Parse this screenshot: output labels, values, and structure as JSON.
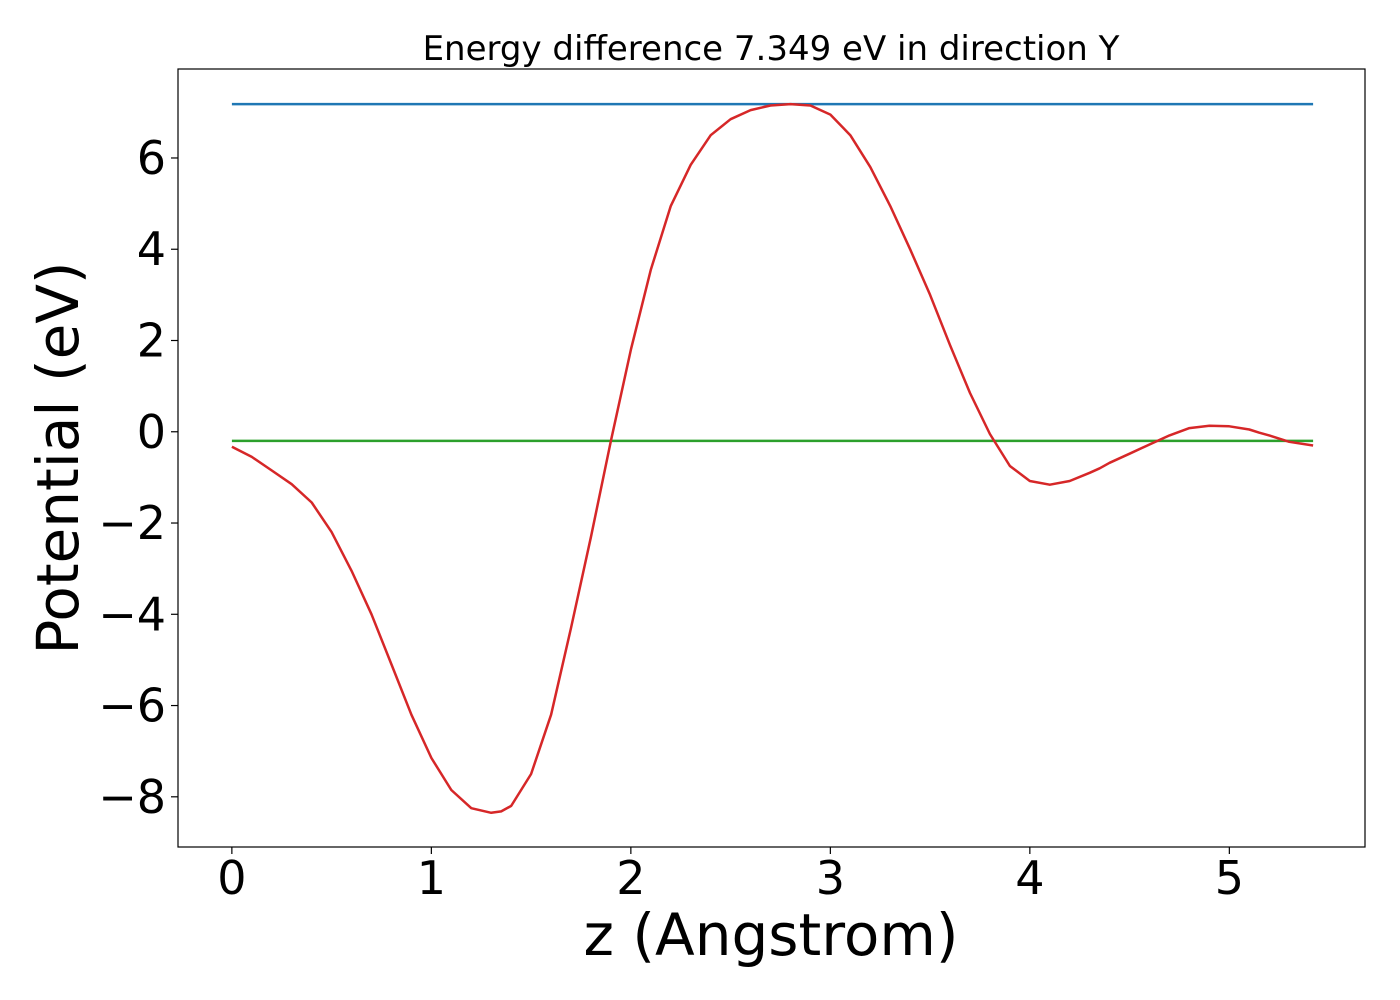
{
  "chart_data": {
    "type": "line",
    "title": "Energy difference 7.349 eV in direction Y",
    "xlabel": "z (Angstrom)",
    "ylabel": "Potential (eV)",
    "xlim": [
      -0.27,
      5.68
    ],
    "ylim": [
      -9.1,
      7.95
    ],
    "xticks": [
      0,
      1,
      2,
      3,
      4,
      5
    ],
    "xtick_labels": [
      "0",
      "1",
      "2",
      "3",
      "4",
      "5"
    ],
    "yticks": [
      -8,
      -6,
      -4,
      -2,
      0,
      2,
      4,
      6
    ],
    "ytick_labels": [
      "−8",
      "−6",
      "−4",
      "−2",
      "0",
      "2",
      "4",
      "6"
    ],
    "grid": false,
    "legend": "none",
    "series": [
      {
        "color": "#d62728",
        "x": [
          0,
          0.1,
          0.2,
          0.3,
          0.4,
          0.5,
          0.6,
          0.7,
          0.8,
          0.9,
          1.0,
          1.1,
          1.2,
          1.3,
          1.35,
          1.4,
          1.5,
          1.6,
          1.7,
          1.8,
          1.9,
          2.0,
          2.1,
          2.2,
          2.3,
          2.4,
          2.5,
          2.6,
          2.7,
          2.8,
          2.9,
          3.0,
          3.1,
          3.2,
          3.3,
          3.4,
          3.5,
          3.6,
          3.7,
          3.8,
          3.9,
          4.0,
          4.1,
          4.2,
          4.3,
          4.35,
          4.4,
          4.5,
          4.6,
          4.7,
          4.8,
          4.9,
          5.0,
          5.1,
          5.15,
          5.2,
          5.3,
          5.42
        ],
        "y": [
          -0.33,
          -0.55,
          -0.85,
          -1.15,
          -1.55,
          -2.2,
          -3.05,
          -4.0,
          -5.1,
          -6.2,
          -7.15,
          -7.85,
          -8.25,
          -8.35,
          -8.32,
          -8.2,
          -7.5,
          -6.2,
          -4.3,
          -2.3,
          -0.2,
          1.8,
          3.55,
          4.95,
          5.85,
          6.5,
          6.85,
          7.05,
          7.15,
          7.18,
          7.15,
          6.95,
          6.5,
          5.8,
          4.95,
          4.0,
          3.0,
          1.9,
          0.85,
          -0.05,
          -0.75,
          -1.08,
          -1.16,
          -1.08,
          -0.9,
          -0.8,
          -0.68,
          -0.48,
          -0.28,
          -0.08,
          0.08,
          0.13,
          0.12,
          0.05,
          -0.02,
          -0.08,
          -0.22,
          -0.3
        ]
      },
      {
        "color": "#1f77b4",
        "x": [
          0,
          5.42
        ],
        "y": [
          7.18,
          7.18
        ]
      },
      {
        "color": "#2ca02c",
        "x": [
          0,
          5.42
        ],
        "y": [
          -0.2,
          -0.2
        ]
      }
    ]
  }
}
